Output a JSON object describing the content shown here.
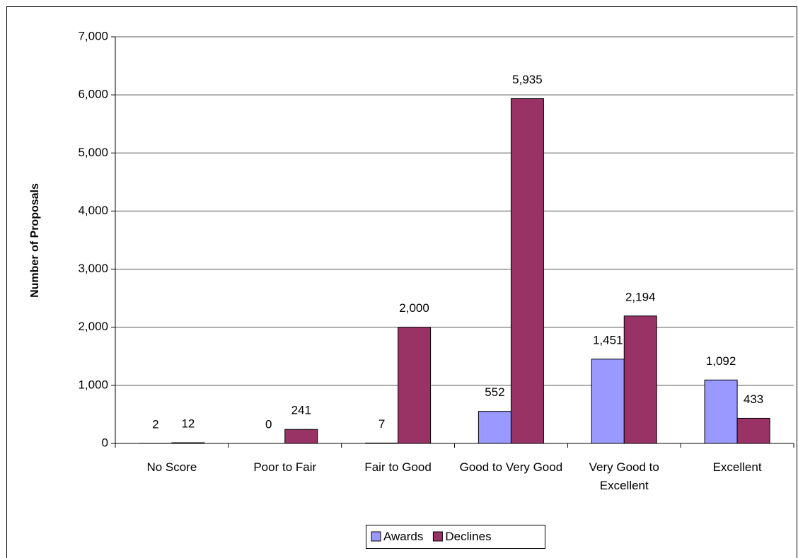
{
  "chart_data": {
    "type": "bar",
    "y_label": "Number of Proposals",
    "categories": [
      "No Score",
      "Poor to Fair",
      "Fair to Good",
      "Good to Very Good",
      "Very Good to Excellent",
      "Excellent"
    ],
    "series": [
      {
        "name": "Awards",
        "color": "#9999ff",
        "values": [
          2,
          0,
          7,
          552,
          1451,
          1092
        ],
        "value_labels": [
          "2",
          "0",
          "7",
          "552",
          "1,451",
          "1,092"
        ]
      },
      {
        "name": "Declines",
        "color": "#993366",
        "values": [
          12,
          241,
          2000,
          5935,
          2194,
          433
        ],
        "value_labels": [
          "12",
          "241",
          "2,000",
          "5,935",
          "2,194",
          "433"
        ]
      }
    ],
    "ylim": [
      0,
      7000
    ],
    "yticks": [
      0,
      {
        "value": 1000,
        "label": "1,000"
      },
      {
        "value": 2000,
        "label": "2,000"
      },
      {
        "value": 3000,
        "label": "3,000"
      },
      {
        "value": 4000,
        "label": "4,000"
      },
      {
        "value": 5000,
        "label": "5,000"
      },
      {
        "value": 6000,
        "label": "6,000"
      },
      {
        "value": 7000,
        "label": "7,000"
      }
    ],
    "grid": true,
    "legend": "bottom"
  }
}
